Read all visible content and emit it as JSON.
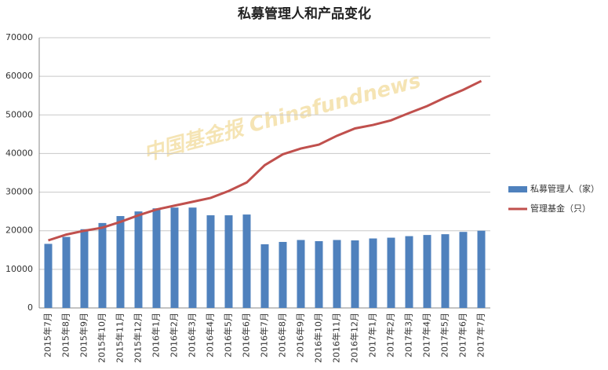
{
  "chart_data": {
    "type": "bar_line",
    "title": "私募管理人和产品变化",
    "watermark": "中国基金报 Chinafundnews",
    "categories": [
      "2015年7月",
      "2015年8月",
      "2015年9月",
      "2015年10月",
      "2015年11月",
      "2015年12月",
      "2016年1月",
      "2016年2月",
      "2016年3月",
      "2016年4月",
      "2016年5月",
      "2016年6月",
      "2016年7月",
      "2016年8月",
      "2016年9月",
      "2016年10月",
      "2016年11月",
      "2016年12月",
      "2017年1月",
      "2017年2月",
      "2017年3月",
      "2017年4月",
      "2017年5月",
      "2017年6月",
      "2017年7月"
    ],
    "series": [
      {
        "name": "私募管理人（家）",
        "type": "bar",
        "color": "#4f81bd",
        "values": [
          16600,
          18400,
          20400,
          22000,
          23800,
          25000,
          25800,
          26000,
          26000,
          24000,
          24000,
          24200,
          16500,
          17100,
          17600,
          17300,
          17600,
          17500,
          18000,
          18200,
          18600,
          18900,
          19100,
          19700,
          20000
        ]
      },
      {
        "name": "管理基金（只）",
        "type": "line",
        "color": "#c0504d",
        "values": [
          17500,
          19000,
          20000,
          20800,
          22300,
          24000,
          25500,
          26500,
          27500,
          28500,
          30300,
          32500,
          37000,
          39800,
          41300,
          42300,
          44600,
          46500,
          47400,
          48600,
          50500,
          52300,
          54500,
          56500,
          58800
        ]
      }
    ],
    "ylim": [
      0,
      70000
    ],
    "yticks": [
      0,
      10000,
      20000,
      30000,
      40000,
      50000,
      60000,
      70000
    ],
    "grid": true,
    "legend": "right"
  }
}
